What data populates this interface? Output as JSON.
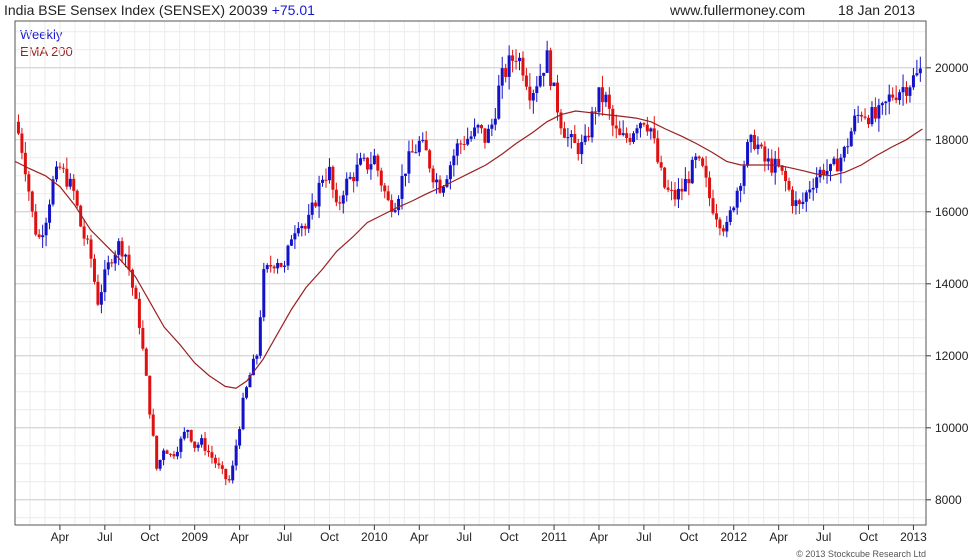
{
  "header": {
    "title": "India BSE Sensex Index (SENSEX)",
    "last": "20039",
    "change": "+75.01",
    "site": "www.fullermoney.com",
    "date": "18 Jan 2013"
  },
  "legend": {
    "weekly": "Weekly",
    "ema": "EMA 200"
  },
  "credit": "© 2013 Stockcube Research Ltd",
  "colors": {
    "up": "#1212c8",
    "down": "#e01010",
    "ema": "#9a2020",
    "grid": "#cfcfcf",
    "weekly_text": "#1a1ad0",
    "ema_text": "#9a2020"
  },
  "chart_data": {
    "type": "candlestick",
    "y_ticks": [
      8000,
      10000,
      12000,
      14000,
      16000,
      18000,
      20000
    ],
    "y_tick_labels": [
      "8000",
      "10000",
      "12000",
      "14000",
      "16000",
      "18000",
      "20000"
    ],
    "ylim": [
      7300,
      21300
    ],
    "y_axis_side": "right",
    "grid": true,
    "x_labels": [
      {
        "label": "Apr",
        "t": 2008.25
      },
      {
        "label": "Jul",
        "t": 2008.5
      },
      {
        "label": "Oct",
        "t": 2008.75
      },
      {
        "label": "2009",
        "t": 2009.0
      },
      {
        "label": "Apr",
        "t": 2009.25
      },
      {
        "label": "Jul",
        "t": 2009.5
      },
      {
        "label": "Oct",
        "t": 2009.75
      },
      {
        "label": "2010",
        "t": 2010.0
      },
      {
        "label": "Apr",
        "t": 2010.25
      },
      {
        "label": "Jul",
        "t": 2010.5
      },
      {
        "label": "Oct",
        "t": 2010.75
      },
      {
        "label": "2011",
        "t": 2011.0
      },
      {
        "label": "Apr",
        "t": 2011.25
      },
      {
        "label": "Jul",
        "t": 2011.5
      },
      {
        "label": "Oct",
        "t": 2011.75
      },
      {
        "label": "2012",
        "t": 2012.0
      },
      {
        "label": "Apr",
        "t": 2012.25
      },
      {
        "label": "Jul",
        "t": 2012.5
      },
      {
        "label": "Oct",
        "t": 2012.75
      },
      {
        "label": "2013",
        "t": 2013.0
      }
    ],
    "xlim": [
      2008.0,
      2013.07
    ],
    "price_path": [
      [
        2008.0,
        18500
      ],
      [
        2008.03,
        18000
      ],
      [
        2008.06,
        17200
      ],
      [
        2008.1,
        15800
      ],
      [
        2008.13,
        15200
      ],
      [
        2008.17,
        15800
      ],
      [
        2008.21,
        16800
      ],
      [
        2008.25,
        17200
      ],
      [
        2008.29,
        16900
      ],
      [
        2008.33,
        16500
      ],
      [
        2008.37,
        15500
      ],
      [
        2008.42,
        14800
      ],
      [
        2008.46,
        13500
      ],
      [
        2008.5,
        14200
      ],
      [
        2008.54,
        14800
      ],
      [
        2008.58,
        15100
      ],
      [
        2008.62,
        14800
      ],
      [
        2008.65,
        14000
      ],
      [
        2008.69,
        13000
      ],
      [
        2008.72,
        11800
      ],
      [
        2008.75,
        10500
      ],
      [
        2008.79,
        8800
      ],
      [
        2008.83,
        9500
      ],
      [
        2008.87,
        9200
      ],
      [
        2008.92,
        9600
      ],
      [
        2008.96,
        10000
      ],
      [
        2009.0,
        9500
      ],
      [
        2009.04,
        9600
      ],
      [
        2009.08,
        9300
      ],
      [
        2009.12,
        9000
      ],
      [
        2009.17,
        8600
      ],
      [
        2009.2,
        8500
      ],
      [
        2009.23,
        9500
      ],
      [
        2009.27,
        10700
      ],
      [
        2009.31,
        11500
      ],
      [
        2009.35,
        12100
      ],
      [
        2009.38,
        14200
      ],
      [
        2009.42,
        14500
      ],
      [
        2009.46,
        14700
      ],
      [
        2009.5,
        14400
      ],
      [
        2009.54,
        15400
      ],
      [
        2009.58,
        15800
      ],
      [
        2009.62,
        15500
      ],
      [
        2009.67,
        16300
      ],
      [
        2009.71,
        17000
      ],
      [
        2009.75,
        17100
      ],
      [
        2009.79,
        16000
      ],
      [
        2009.83,
        16700
      ],
      [
        2009.88,
        17000
      ],
      [
        2009.92,
        17300
      ],
      [
        2009.96,
        17300
      ],
      [
        2010.0,
        17500
      ],
      [
        2010.04,
        16800
      ],
      [
        2010.08,
        16200
      ],
      [
        2010.12,
        16300
      ],
      [
        2010.17,
        17200
      ],
      [
        2010.21,
        17600
      ],
      [
        2010.25,
        17900
      ],
      [
        2010.29,
        17600
      ],
      [
        2010.33,
        17000
      ],
      [
        2010.37,
        16700
      ],
      [
        2010.42,
        17300
      ],
      [
        2010.46,
        17800
      ],
      [
        2010.5,
        18000
      ],
      [
        2010.54,
        18100
      ],
      [
        2010.58,
        18300
      ],
      [
        2010.62,
        18000
      ],
      [
        2010.66,
        18500
      ],
      [
        2010.7,
        19600
      ],
      [
        2010.75,
        20100
      ],
      [
        2010.79,
        20400
      ],
      [
        2010.83,
        20000
      ],
      [
        2010.87,
        19300
      ],
      [
        2010.92,
        19800
      ],
      [
        2010.96,
        20300
      ],
      [
        2011.0,
        19300
      ],
      [
        2011.04,
        18500
      ],
      [
        2011.08,
        18000
      ],
      [
        2011.12,
        17800
      ],
      [
        2011.17,
        17800
      ],
      [
        2011.21,
        18600
      ],
      [
        2011.25,
        19200
      ],
      [
        2011.29,
        19100
      ],
      [
        2011.33,
        18300
      ],
      [
        2011.37,
        18000
      ],
      [
        2011.42,
        18100
      ],
      [
        2011.46,
        18500
      ],
      [
        2011.5,
        18600
      ],
      [
        2011.54,
        18300
      ],
      [
        2011.58,
        17300
      ],
      [
        2011.62,
        16600
      ],
      [
        2011.67,
        16400
      ],
      [
        2011.71,
        16600
      ],
      [
        2011.75,
        17000
      ],
      [
        2011.79,
        17400
      ],
      [
        2011.83,
        17100
      ],
      [
        2011.87,
        16300
      ],
      [
        2011.92,
        15800
      ],
      [
        2011.96,
        15500
      ],
      [
        2012.0,
        16300
      ],
      [
        2012.04,
        17000
      ],
      [
        2012.08,
        17800
      ],
      [
        2012.12,
        18000
      ],
      [
        2012.17,
        17400
      ],
      [
        2012.21,
        17300
      ],
      [
        2012.25,
        17200
      ],
      [
        2012.29,
        16800
      ],
      [
        2012.33,
        16300
      ],
      [
        2012.37,
        16100
      ],
      [
        2012.42,
        16700
      ],
      [
        2012.46,
        17000
      ],
      [
        2012.5,
        17200
      ],
      [
        2012.54,
        17100
      ],
      [
        2012.58,
        17400
      ],
      [
        2012.62,
        17700
      ],
      [
        2012.67,
        18500
      ],
      [
        2012.71,
        18800
      ],
      [
        2012.75,
        18700
      ],
      [
        2012.79,
        18600
      ],
      [
        2012.83,
        18800
      ],
      [
        2012.87,
        19200
      ],
      [
        2012.92,
        19400
      ],
      [
        2012.96,
        19500
      ],
      [
        2013.0,
        19700
      ],
      [
        2013.03,
        19800
      ],
      [
        2013.05,
        20039
      ]
    ],
    "ema200": [
      [
        2008.0,
        17400
      ],
      [
        2008.08,
        17200
      ],
      [
        2008.17,
        17000
      ],
      [
        2008.25,
        16700
      ],
      [
        2008.33,
        16200
      ],
      [
        2008.42,
        15500
      ],
      [
        2008.5,
        15100
      ],
      [
        2008.58,
        14700
      ],
      [
        2008.67,
        14200
      ],
      [
        2008.75,
        13500
      ],
      [
        2008.83,
        12800
      ],
      [
        2008.92,
        12300
      ],
      [
        2009.0,
        11800
      ],
      [
        2009.08,
        11450
      ],
      [
        2009.17,
        11150
      ],
      [
        2009.23,
        11100
      ],
      [
        2009.29,
        11300
      ],
      [
        2009.38,
        11900
      ],
      [
        2009.46,
        12600
      ],
      [
        2009.54,
        13300
      ],
      [
        2009.62,
        13900
      ],
      [
        2009.71,
        14400
      ],
      [
        2009.79,
        14900
      ],
      [
        2009.88,
        15300
      ],
      [
        2009.96,
        15700
      ],
      [
        2010.04,
        15900
      ],
      [
        2010.12,
        16100
      ],
      [
        2010.21,
        16300
      ],
      [
        2010.29,
        16500
      ],
      [
        2010.38,
        16700
      ],
      [
        2010.46,
        16900
      ],
      [
        2010.54,
        17100
      ],
      [
        2010.62,
        17300
      ],
      [
        2010.71,
        17600
      ],
      [
        2010.79,
        17900
      ],
      [
        2010.88,
        18200
      ],
      [
        2010.96,
        18500
      ],
      [
        2011.04,
        18700
      ],
      [
        2011.12,
        18800
      ],
      [
        2011.21,
        18750
      ],
      [
        2011.29,
        18700
      ],
      [
        2011.38,
        18650
      ],
      [
        2011.46,
        18600
      ],
      [
        2011.54,
        18500
      ],
      [
        2011.62,
        18300
      ],
      [
        2011.71,
        18100
      ],
      [
        2011.79,
        17900
      ],
      [
        2011.88,
        17650
      ],
      [
        2011.96,
        17400
      ],
      [
        2012.04,
        17300
      ],
      [
        2012.12,
        17300
      ],
      [
        2012.21,
        17300
      ],
      [
        2012.29,
        17250
      ],
      [
        2012.38,
        17150
      ],
      [
        2012.46,
        17050
      ],
      [
        2012.54,
        17000
      ],
      [
        2012.62,
        17100
      ],
      [
        2012.71,
        17300
      ],
      [
        2012.79,
        17550
      ],
      [
        2012.88,
        17800
      ],
      [
        2012.96,
        18000
      ],
      [
        2013.05,
        18300
      ]
    ]
  }
}
